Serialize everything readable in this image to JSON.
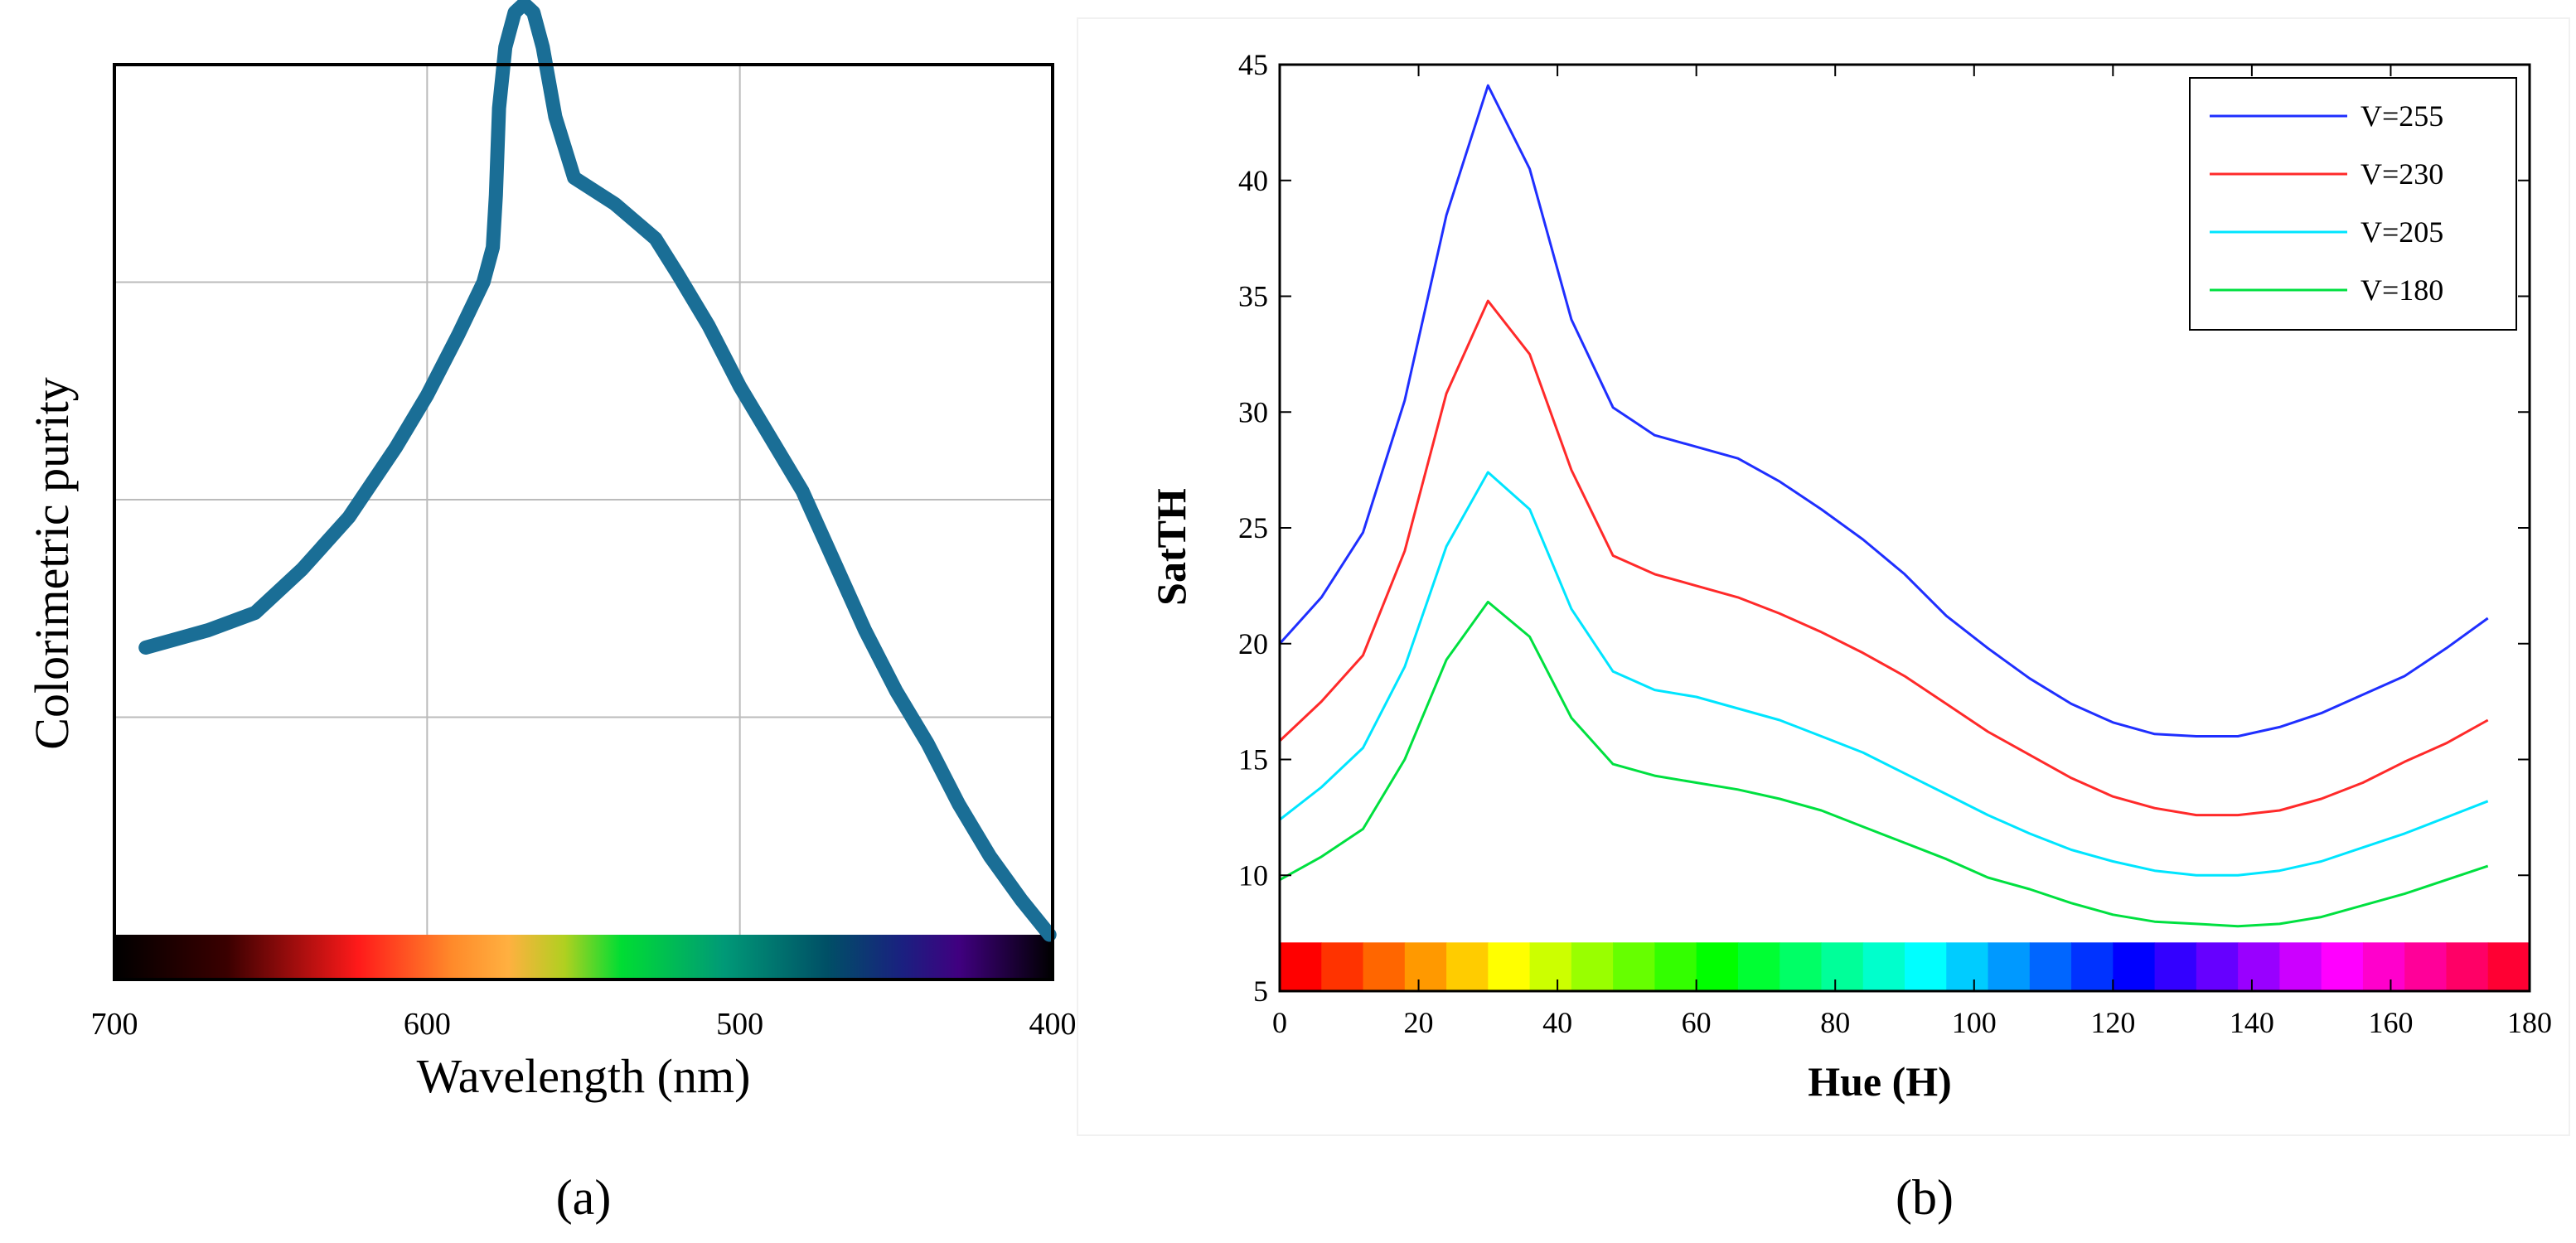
{
  "chart_data": [
    {
      "id": "a",
      "type": "line",
      "caption": "(a)",
      "xlabel": "Wavelength (nm)",
      "ylabel": "Colorimetric purity",
      "xlim": [
        700,
        400
      ],
      "x_reversed": true,
      "ylim": [
        0,
        1
      ],
      "grid": true,
      "x_ticks": [
        700,
        600,
        500,
        400
      ],
      "y_gridlines": [
        0.25,
        0.5,
        0.75,
        1.0
      ],
      "y_tick_labels_shown": false,
      "color": "#1a6e96",
      "colorbar": "wavelength spectrum",
      "series": [
        {
          "name": "purity",
          "x": [
            690,
            670,
            655,
            640,
            625,
            610,
            600,
            590,
            582,
            579,
            578,
            577,
            575,
            572,
            569,
            566,
            563,
            559,
            553,
            540,
            527,
            520,
            510,
            500,
            490,
            480,
            470,
            460,
            450,
            440,
            430,
            420,
            410,
            401
          ],
          "y": [
            0.33,
            0.35,
            0.37,
            0.42,
            0.48,
            0.56,
            0.62,
            0.69,
            0.75,
            0.79,
            0.85,
            0.95,
            1.02,
            1.06,
            1.07,
            1.06,
            1.02,
            0.94,
            0.87,
            0.84,
            0.8,
            0.76,
            0.7,
            0.63,
            0.57,
            0.51,
            0.43,
            0.35,
            0.28,
            0.22,
            0.15,
            0.09,
            0.04,
            0.0
          ]
        }
      ]
    },
    {
      "id": "b",
      "type": "line",
      "caption": "(b)",
      "xlabel": "Hue (H)",
      "ylabel": "SatTH",
      "xlim": [
        0,
        180
      ],
      "ylim": [
        5,
        45
      ],
      "x_ticks": [
        0,
        20,
        40,
        60,
        80,
        100,
        120,
        140,
        160,
        180
      ],
      "y_ticks": [
        5,
        10,
        15,
        20,
        25,
        30,
        35,
        40,
        45
      ],
      "legend_position": "top-right",
      "colorbar": "hue spectrum",
      "x": [
        0,
        6,
        12,
        18,
        24,
        30,
        36,
        42,
        48,
        54,
        60,
        66,
        72,
        78,
        84,
        90,
        96,
        102,
        108,
        114,
        120,
        126,
        132,
        138,
        144,
        150,
        156,
        162,
        168,
        174
      ],
      "series": [
        {
          "name": "V=255",
          "color": "#1f2fff",
          "values": [
            20.0,
            22.0,
            24.8,
            30.5,
            38.5,
            44.1,
            40.5,
            34.0,
            30.2,
            29.0,
            28.5,
            28.0,
            27.0,
            25.8,
            24.5,
            23.0,
            21.2,
            19.8,
            18.5,
            17.4,
            16.6,
            16.1,
            16.0,
            16.0,
            16.4,
            17.0,
            17.8,
            18.6,
            19.8,
            21.1
          ]
        },
        {
          "name": "V=230",
          "color": "#ff2a2a",
          "values": [
            15.8,
            17.5,
            19.5,
            24.0,
            30.8,
            34.8,
            32.5,
            27.5,
            23.8,
            23.0,
            22.5,
            22.0,
            21.3,
            20.5,
            19.6,
            18.6,
            17.4,
            16.2,
            15.2,
            14.2,
            13.4,
            12.9,
            12.6,
            12.6,
            12.8,
            13.3,
            14.0,
            14.9,
            15.7,
            16.7
          ]
        },
        {
          "name": "V=205",
          "color": "#00e5ff",
          "values": [
            12.4,
            13.8,
            15.5,
            19.0,
            24.2,
            27.4,
            25.8,
            21.5,
            18.8,
            18.0,
            17.7,
            17.2,
            16.7,
            16.0,
            15.3,
            14.4,
            13.5,
            12.6,
            11.8,
            11.1,
            10.6,
            10.2,
            10.0,
            10.0,
            10.2,
            10.6,
            11.2,
            11.8,
            12.5,
            13.2
          ]
        },
        {
          "name": "V=180",
          "color": "#00e040",
          "values": [
            9.8,
            10.8,
            12.0,
            15.0,
            19.3,
            21.8,
            20.3,
            16.8,
            14.8,
            14.3,
            14.0,
            13.7,
            13.3,
            12.8,
            12.1,
            11.4,
            10.7,
            9.9,
            9.4,
            8.8,
            8.3,
            8.0,
            7.9,
            7.8,
            7.9,
            8.2,
            8.7,
            9.2,
            9.8,
            10.4
          ]
        }
      ]
    }
  ]
}
